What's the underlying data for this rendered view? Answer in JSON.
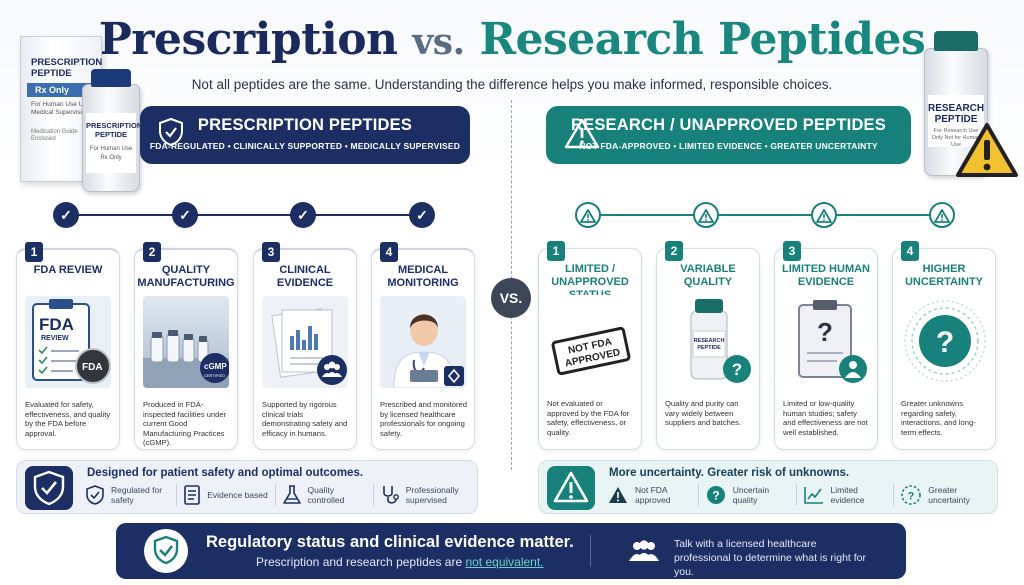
{
  "title": {
    "part1": "Prescription",
    "part2": "vs.",
    "part3": "Research Peptides"
  },
  "subtitle": "Not all peptides are the same. Understanding the difference helps you make informed, responsible choices.",
  "rx_box": {
    "heading": "PRESCRIPTION PEPTIDE",
    "bar": "Rx Only",
    "sub": "For Human Use Under Medical Supervision",
    "sub2": "Medication Guide Enclosed"
  },
  "rx_vial": {
    "label": "PRESCRIPTION PEPTIDE",
    "sub": "For Human Use Rx Only"
  },
  "research_vial": {
    "label": "RESEARCH PEPTIDE",
    "sub": "For Research Use Only Not for Human Use"
  },
  "left": {
    "banner_title": "PRESCRIPTION PEPTIDES",
    "banner_sub": "FDA-REGULATED • CLINICALLY SUPPORTED • MEDICALLY SUPERVISED",
    "cards": [
      {
        "num": "1",
        "title": "FDA REVIEW",
        "desc": "Evaluated for safety, effectiveness, and quality by the FDA before approval."
      },
      {
        "num": "2",
        "title": "QUALITY MANUFACTURING",
        "desc": "Produced in FDA-inspected facilities under current Good Manufacturing Practices (cGMP)."
      },
      {
        "num": "3",
        "title": "CLINICAL EVIDENCE",
        "desc": "Supported by rigorous clinical trials demonstrating safety and efficacy in humans."
      },
      {
        "num": "4",
        "title": "MEDICAL MONITORING",
        "desc": "Prescribed and monitored by licensed healthcare professionals for ongoing safety."
      }
    ],
    "card_img_text": {
      "fda_doc": "FDA",
      "fda_doc_sub": "REVIEW",
      "fda_seal": "FDA",
      "cgmp": "cGMP",
      "cgmp_sub": "CERTIFIED"
    },
    "summary_title": "Designed for patient safety and optimal outcomes.",
    "summary_items": [
      "Regulated for safety",
      "Evidence based",
      "Quality controlled",
      "Professionally supervised"
    ]
  },
  "vs_label": "VS.",
  "right": {
    "banner_title": "RESEARCH / UNAPPROVED PEPTIDES",
    "banner_sub": "NOT FDA-APPROVED • LIMITED EVIDENCE • GREATER UNCERTAINTY",
    "cards": [
      {
        "num": "1",
        "title": "LIMITED / UNAPPROVED STATUS",
        "desc": "Not evaluated or approved by the FDA for safety, effectiveness, or quality."
      },
      {
        "num": "2",
        "title": "VARIABLE QUALITY",
        "desc": "Quality and purity can vary widely between suppliers and batches."
      },
      {
        "num": "3",
        "title": "LIMITED HUMAN EVIDENCE",
        "desc": "Limited or low-quality human studies; safety and effectiveness are not well established."
      },
      {
        "num": "4",
        "title": "HIGHER UNCERTAINTY",
        "desc": "Greater unknowns regarding safety, interactions, and long-term effects."
      }
    ],
    "card_img_text": {
      "stamp": "NOT FDA APPROVED",
      "vial": "RESEARCH PEPTIDE"
    },
    "summary_title": "More uncertainty. Greater risk of unknowns.",
    "summary_items": [
      "Not FDA approved",
      "Uncertain quality",
      "Limited evidence",
      "Greater uncertainty"
    ]
  },
  "footer": {
    "headline": "Regulatory status and clinical evidence matter.",
    "sub_prefix": "Prescription and research peptides are ",
    "sub_emphasis": "not equivalent.",
    "advice": "Talk with a licensed healthcare professional to determine what is right for you."
  },
  "colors": {
    "navy": "#1b2f64",
    "teal": "#17827b",
    "warning": "#f2c12e"
  }
}
